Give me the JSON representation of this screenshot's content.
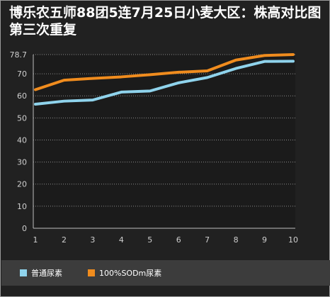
{
  "title": "博乐农五师88团5连7月25日小麦大区：株高对比图第三次重复",
  "colors": {
    "background": "#212121",
    "plot_background": "#1b1b1b",
    "grid": "#8a8a8a",
    "text": "#cfcfcf",
    "legend_bar": "#3c3c3c"
  },
  "chart_data": {
    "type": "line",
    "title": "博乐农五师88团5连7月25日小麦大区：株高对比图第三次重复",
    "xlabel": "",
    "ylabel": "",
    "x": [
      1,
      2,
      3,
      4,
      5,
      6,
      7,
      8,
      9,
      10
    ],
    "ylim": [
      0,
      78.7
    ],
    "yticks": [
      0,
      10,
      20,
      30,
      40,
      50,
      60,
      70,
      78.7
    ],
    "grid": true,
    "legend_position": "bottom",
    "series": [
      {
        "name": "普通尿素",
        "color": "#8fd3ec",
        "values": [
          56.2,
          57.6,
          58.1,
          61.7,
          62.2,
          65.9,
          68.3,
          72.4,
          75.6,
          75.7
        ]
      },
      {
        "name": "100%SODm尿素",
        "color": "#f08c1e",
        "values": [
          62.8,
          67.1,
          67.9,
          68.6,
          69.6,
          70.7,
          71.3,
          76.2,
          78.3,
          78.7
        ]
      }
    ]
  }
}
